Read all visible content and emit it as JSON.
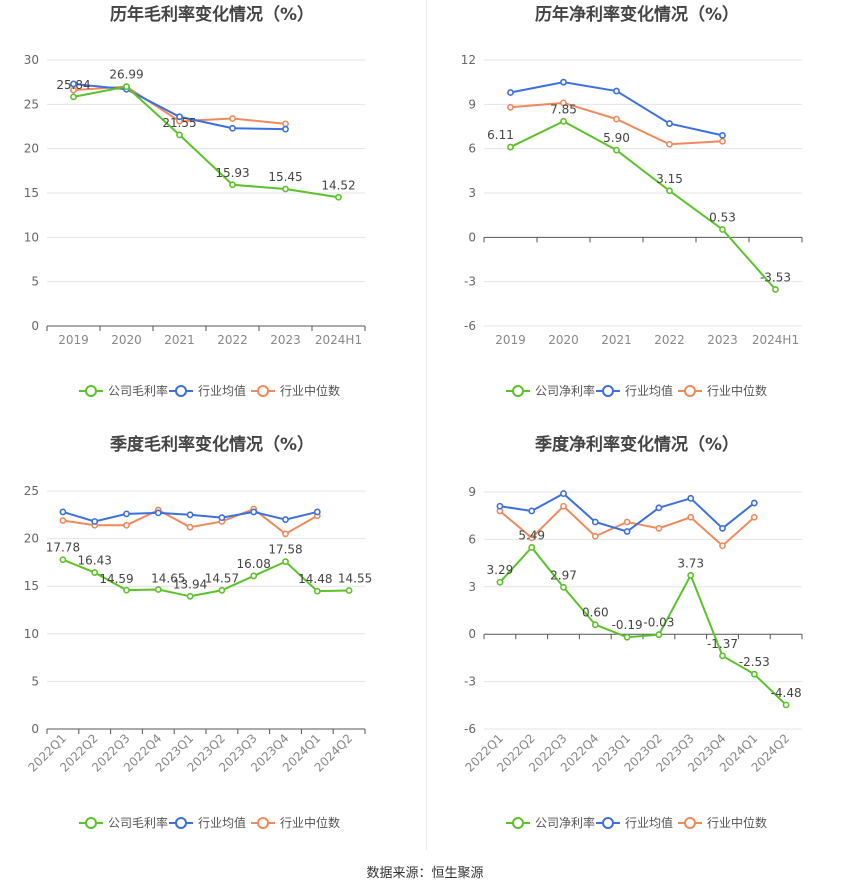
{
  "legend": {
    "company_gross": "公司毛利率",
    "company_net": "公司净利率",
    "industry_avg": "行业均值",
    "industry_median": "行业中位数"
  },
  "colors": {
    "company": "#5cc22a",
    "industry_avg": "#3c6fe0",
    "industry_median": "#f08a5d"
  },
  "footer": "数据来源：恒生聚源",
  "chart_data": [
    {
      "type": "line",
      "title": "历年毛利率变化情况（%）",
      "categories": [
        "2019",
        "2020",
        "2021",
        "2022",
        "2023",
        "2024H1"
      ],
      "ylim": [
        0,
        30
      ],
      "yticks": [
        0,
        5,
        10,
        15,
        20,
        25,
        30
      ],
      "series": [
        {
          "name": "公司毛利率",
          "values": [
            25.84,
            26.99,
            21.55,
            15.93,
            15.45,
            14.52
          ]
        },
        {
          "name": "行业均值",
          "values": [
            27.3,
            26.7,
            23.6,
            22.3,
            22.2,
            null
          ]
        },
        {
          "name": "行业中位数",
          "values": [
            26.6,
            27.0,
            23.1,
            23.4,
            22.8,
            null
          ]
        }
      ],
      "data_labels": [
        "25.84",
        "26.99",
        "21.55",
        "15.93",
        "15.45",
        "14.52"
      ]
    },
    {
      "type": "line",
      "title": "历年净利率变化情况（%）",
      "categories": [
        "2019",
        "2020",
        "2021",
        "2022",
        "2023",
        "2024H1"
      ],
      "ylim": [
        -6,
        12
      ],
      "yticks": [
        -6,
        -3,
        0,
        3,
        6,
        9,
        12
      ],
      "series": [
        {
          "name": "公司净利率",
          "values": [
            6.11,
            7.85,
            5.9,
            3.15,
            0.53,
            -3.53
          ]
        },
        {
          "name": "行业均值",
          "values": [
            9.8,
            10.5,
            9.9,
            7.7,
            6.9,
            null
          ]
        },
        {
          "name": "行业中位数",
          "values": [
            8.8,
            9.1,
            8.0,
            6.3,
            6.5,
            null
          ]
        }
      ],
      "data_labels": [
        "6.11",
        "7.85",
        "5.90",
        "3.15",
        "0.53",
        "-3.53"
      ]
    },
    {
      "type": "line",
      "title": "季度毛利率变化情况（%）",
      "categories": [
        "2022Q1",
        "2022Q2",
        "2022Q3",
        "2022Q4",
        "2023Q1",
        "2023Q2",
        "2023Q3",
        "2023Q4",
        "2024Q1",
        "2024Q2"
      ],
      "ylim": [
        0,
        25
      ],
      "yticks": [
        0,
        5,
        10,
        15,
        20,
        25
      ],
      "series": [
        {
          "name": "公司毛利率",
          "values": [
            17.78,
            16.43,
            14.59,
            14.65,
            13.94,
            14.57,
            16.08,
            17.58,
            14.48,
            14.55
          ]
        },
        {
          "name": "行业均值",
          "values": [
            22.8,
            21.8,
            22.6,
            22.7,
            22.5,
            22.2,
            22.8,
            22.0,
            22.8,
            null
          ]
        },
        {
          "name": "行业中位数",
          "values": [
            21.9,
            21.4,
            21.4,
            23.0,
            21.2,
            21.8,
            23.1,
            20.5,
            22.4,
            null
          ]
        }
      ],
      "data_labels": [
        "17.78",
        "16.43",
        "14.59",
        "14.65",
        "13.94",
        "14.57",
        "16.08",
        "17.58",
        "14.48",
        "14.55"
      ]
    },
    {
      "type": "line",
      "title": "季度净利率变化情况（%）",
      "categories": [
        "2022Q1",
        "2022Q2",
        "2022Q3",
        "2022Q4",
        "2023Q1",
        "2023Q2",
        "2023Q3",
        "2023Q4",
        "2024Q1",
        "2024Q2"
      ],
      "ylim": [
        -6,
        9
      ],
      "yticks": [
        -6,
        -3,
        0,
        3,
        6,
        9
      ],
      "series": [
        {
          "name": "公司净利率",
          "values": [
            3.29,
            5.49,
            2.97,
            0.6,
            -0.19,
            -0.03,
            3.73,
            -1.37,
            -2.53,
            -4.48
          ]
        },
        {
          "name": "行业均值",
          "values": [
            8.1,
            7.8,
            8.9,
            7.1,
            6.5,
            8.0,
            8.6,
            6.7,
            8.3,
            null
          ]
        },
        {
          "name": "行业中位数",
          "values": [
            7.8,
            6.1,
            8.1,
            6.2,
            7.1,
            6.7,
            7.4,
            5.6,
            7.4,
            null
          ]
        }
      ],
      "data_labels": [
        "3.29",
        "5.49",
        "2.97",
        "0.60",
        "-0.19",
        "-0.03",
        "3.73",
        "-1.37",
        "-2.53",
        "-4.48"
      ]
    }
  ]
}
